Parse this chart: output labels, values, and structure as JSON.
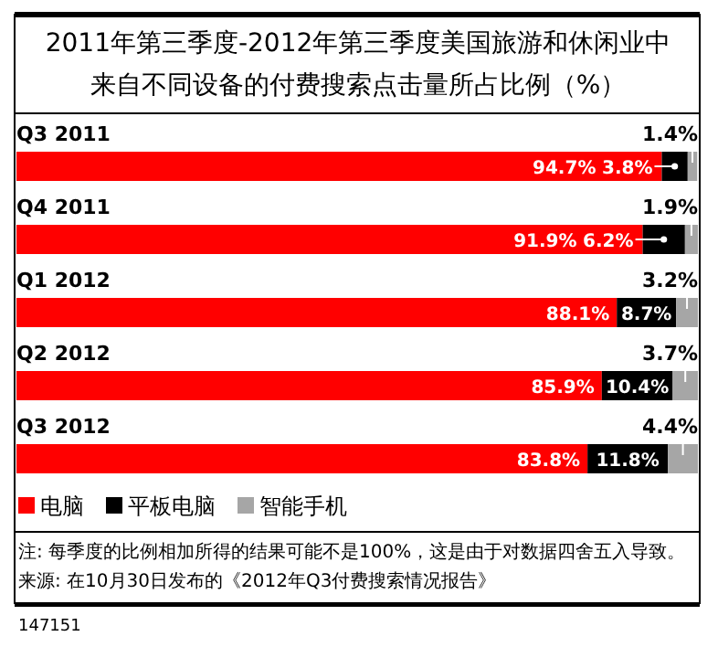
{
  "chart_data": {
    "type": "bar",
    "orientation": "horizontal",
    "stacked": true,
    "title": "2011年第三季度-2012年第三季度美国旅游和休闲业中",
    "subtitle": "来自不同设备的付费搜索点击量所占比例（%）",
    "categories": [
      "Q3 2011",
      "Q4 2011",
      "Q1 2012",
      "Q2 2012",
      "Q3 2012"
    ],
    "series": [
      {
        "name": "电脑",
        "color": "#ff0000",
        "values": [
          94.7,
          91.9,
          88.1,
          85.9,
          83.8
        ],
        "value_labels": [
          "94.7%",
          "91.9%",
          "88.1%",
          "85.9%",
          "83.8%"
        ]
      },
      {
        "name": "平板电脑",
        "color": "#000000",
        "values": [
          3.8,
          6.2,
          8.7,
          10.4,
          11.8
        ],
        "value_labels": [
          "3.8%",
          "6.2%",
          "8.7%",
          "10.4%",
          "11.8%"
        ]
      },
      {
        "name": "智能手机",
        "color": "#a6a6a6",
        "values": [
          1.4,
          1.9,
          3.2,
          3.7,
          4.4
        ],
        "value_labels": [
          "1.4%",
          "1.9%",
          "3.2%",
          "3.7%",
          "4.4%"
        ]
      }
    ],
    "legend": "bottom left",
    "annotations": [
      "注: 每季度的比例相加所得的结果可能不是100%，这是由于对数据四舍五入导致。",
      "来源: 在10月30日发布的《2012年Q3付费搜索情况报告》",
      "147151"
    ]
  }
}
